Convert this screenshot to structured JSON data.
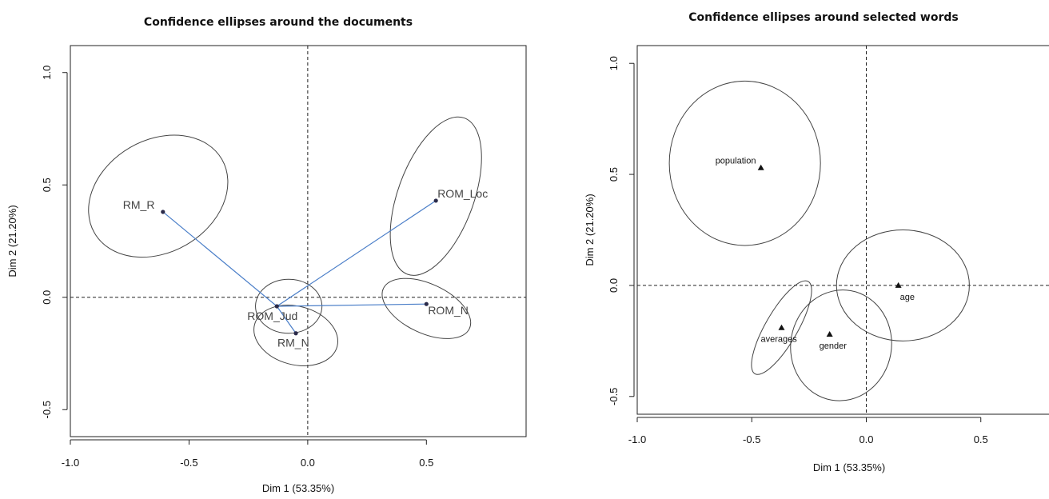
{
  "chart_data": [
    {
      "type": "scatter",
      "title": "Confidence ellipses around the documents",
      "xlabel": "Dim 1 (53.35%)",
      "ylabel": "Dim 2 (21.20%)",
      "xlim": [
        -1.0,
        0.92
      ],
      "ylim": [
        -0.62,
        1.12
      ],
      "xticks": [
        -1.0,
        -0.5,
        0.0,
        0.5
      ],
      "xtick_labels": [
        "-1.0",
        "-0.5",
        "0.0",
        "0.5"
      ],
      "yticks": [
        -0.5,
        0.0,
        0.5,
        1.0
      ],
      "ytick_labels": [
        "-0.5",
        "0.0",
        "0.5",
        "1.0"
      ],
      "reference_lines": {
        "x": 0,
        "y": 0,
        "style": "dashed"
      },
      "points": [
        {
          "label": "RM_R",
          "x": -0.61,
          "y": 0.38
        },
        {
          "label": "ROM_Loc",
          "x": 0.54,
          "y": 0.43
        },
        {
          "label": "ROM_Jud",
          "x": -0.13,
          "y": -0.04
        },
        {
          "label": "ROM_N",
          "x": 0.5,
          "y": -0.03
        },
        {
          "label": "RM_N",
          "x": -0.05,
          "y": -0.16
        }
      ],
      "ellipses": [
        {
          "center": [
            -0.63,
            0.45
          ],
          "rx": 0.31,
          "ry": 0.25,
          "rotation_deg": 30
        },
        {
          "center": [
            0.54,
            0.45
          ],
          "rx": 0.16,
          "ry": 0.37,
          "rotation_deg": -20
        },
        {
          "center": [
            -0.08,
            -0.04
          ],
          "rx": 0.14,
          "ry": 0.12,
          "rotation_deg": 0
        },
        {
          "center": [
            0.5,
            -0.05
          ],
          "rx": 0.2,
          "ry": 0.11,
          "rotation_deg": -25
        },
        {
          "center": [
            -0.05,
            -0.17
          ],
          "rx": 0.18,
          "ry": 0.13,
          "rotation_deg": -15
        }
      ],
      "links": [
        {
          "from": "ROM_Jud",
          "to": "RM_R"
        },
        {
          "from": "ROM_Jud",
          "to": "ROM_Loc"
        },
        {
          "from": "ROM_Jud",
          "to": "ROM_N"
        },
        {
          "from": "ROM_Jud",
          "to": "RM_N"
        }
      ],
      "link_color": "#4a7ec8"
    },
    {
      "type": "scatter",
      "title": "Confidence ellipses around selected words",
      "xlabel": "Dim 1 (53.35%)",
      "ylabel": "Dim 2 (21.20%)",
      "xlim": [
        -1.0,
        0.85
      ],
      "ylim": [
        -0.58,
        1.08
      ],
      "xticks": [
        -1.0,
        -0.5,
        0.0,
        0.5
      ],
      "xtick_labels": [
        "-1.0",
        "-0.5",
        "0.0",
        "0.5"
      ],
      "yticks": [
        -0.5,
        0.0,
        0.5,
        1.0
      ],
      "ytick_labels": [
        "-0.5",
        "0.0",
        "0.5",
        "1.0"
      ],
      "reference_lines": {
        "x": 0,
        "y": 0,
        "style": "dashed"
      },
      "points": [
        {
          "label": "population",
          "x": -0.46,
          "y": 0.53
        },
        {
          "label": "age",
          "x": 0.14,
          "y": 0.0
        },
        {
          "label": "averages",
          "x": -0.37,
          "y": -0.19
        },
        {
          "label": "gender",
          "x": -0.16,
          "y": -0.22
        }
      ],
      "ellipses": [
        {
          "center": [
            -0.53,
            0.55
          ],
          "rx": 0.33,
          "ry": 0.37,
          "rotation_deg": 0
        },
        {
          "center": [
            0.16,
            0.0
          ],
          "rx": 0.29,
          "ry": 0.25,
          "rotation_deg": 0
        },
        {
          "center": [
            -0.37,
            -0.19
          ],
          "rx": 0.07,
          "ry": 0.24,
          "rotation_deg": -30
        },
        {
          "center": [
            -0.11,
            -0.27
          ],
          "rx": 0.22,
          "ry": 0.25,
          "rotation_deg": -10
        }
      ]
    }
  ]
}
